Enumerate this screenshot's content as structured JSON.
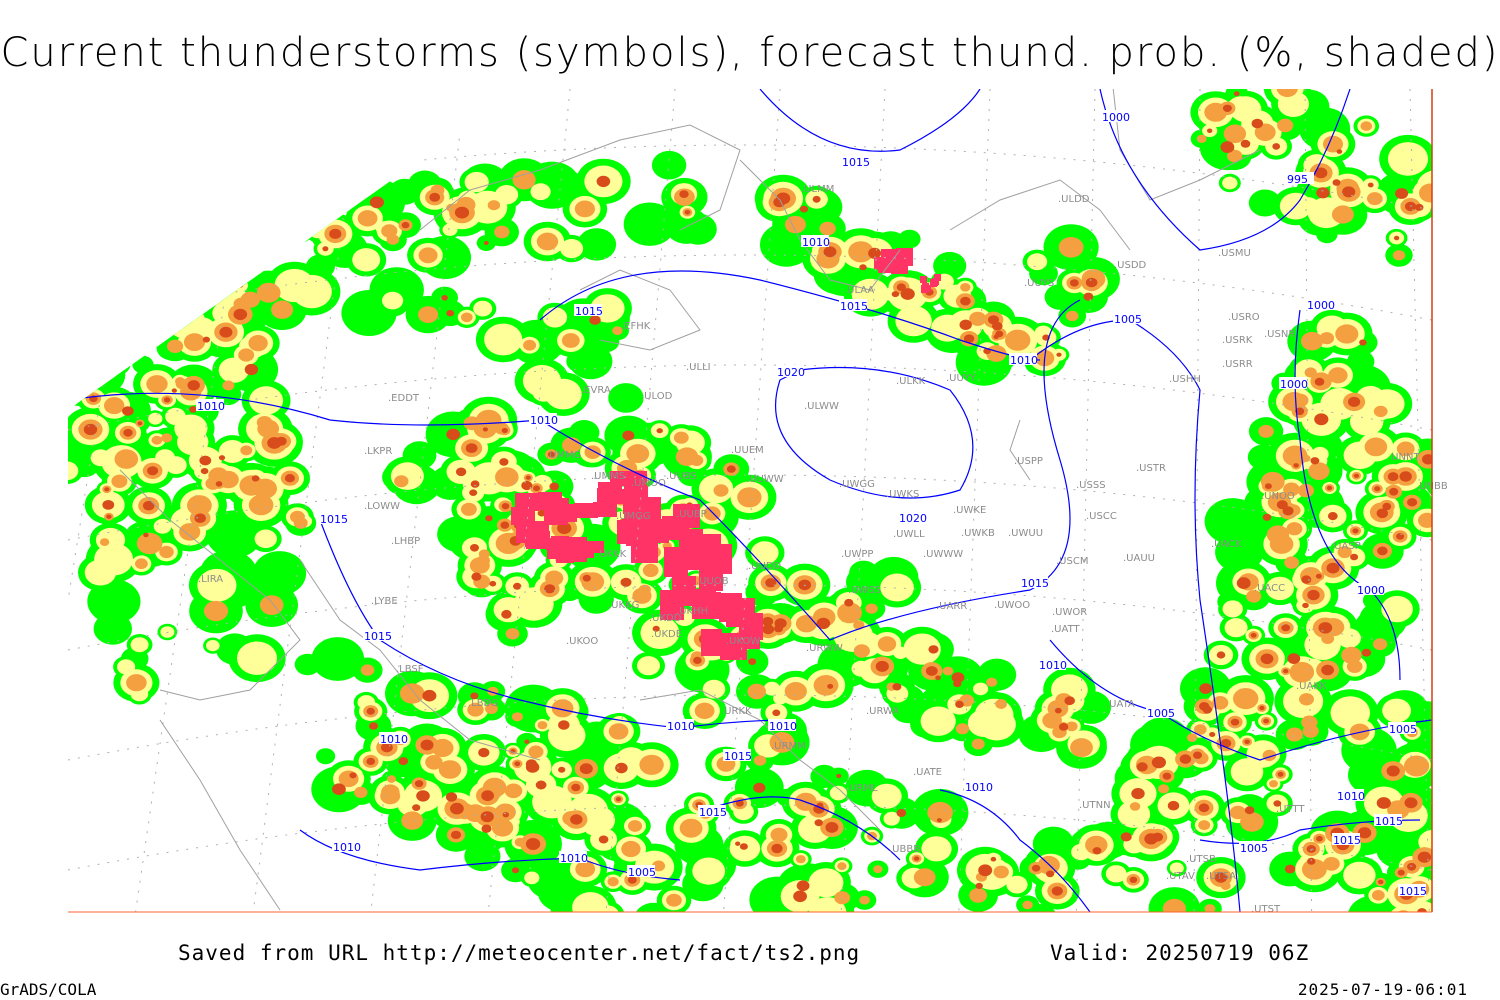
{
  "title": "Current thunderstorms (symbols), forecast thund. prob. (%, shaded)",
  "footer": {
    "saved_from": "Saved from URL http://meteocenter.net/fact/ts2.png",
    "valid": "Valid: 20250719 06Z",
    "software": "GrADS/COLA",
    "generated": "2025-07-19-06:01"
  },
  "colors": {
    "prob_low": "#00ff00",
    "prob_mid": "#ffff99",
    "prob_high": "#f5a040",
    "prob_very_high": "#d84c1c",
    "current_thunderstorms": "#ff3366",
    "isobars": "#0000ff",
    "coastlines": "#a0a0a0",
    "stations": "#8c8c8c"
  },
  "stations": [
    "ULMM",
    "ULDD",
    "USDD",
    "USMU",
    "UUYS",
    "ULAA",
    "EFHK",
    "USRO",
    "USRK",
    "USNR",
    "USRR",
    "ULLI",
    "ULKK",
    "UUYY",
    "USHH",
    "ULWW",
    "EVRA",
    "ULOD",
    "EDDT",
    "UUEM",
    "USPP",
    "USTR",
    "UMMG",
    "LKPR",
    "UUWW",
    "UWGG",
    "UWKS",
    "USSS",
    "UMOO",
    "UMMS",
    "UUBS",
    "UMGG",
    "UUBP",
    "UWKE",
    "USCC",
    "LOWW",
    "UNOO",
    "UNNT",
    "UNBB",
    "LHBP",
    "UWLL",
    "UWKB",
    "UWUU",
    "UACK",
    "UKKK",
    "UWPP",
    "UWWW",
    "UUDD",
    "USCM",
    "UAUU",
    "LIRA",
    "UUOB",
    "UACC",
    "UWSS",
    "UARR",
    "UWOO",
    "UWOR",
    "UKHH",
    "LYBE",
    "UKKG",
    "UKDD",
    "UKOO",
    "UATT",
    "UKDE",
    "UKOW",
    "URWW",
    "LBSF",
    "LBBG",
    "UATA",
    "URWA",
    "URKK",
    "URMM",
    "UATE",
    "URML",
    "UTNN",
    "UBBB",
    "UTTT",
    "UTSB",
    "UTAV",
    "UTSA",
    "UTST",
    "UASP",
    "UAKK"
  ],
  "isobar_labels": [
    "1015",
    "1000",
    "995",
    "1010",
    "1015",
    "1015",
    "1005",
    "1000",
    "1010",
    "1020",
    "1000",
    "1010",
    "1010",
    "1015",
    "1020",
    "1015",
    "1000",
    "1015",
    "1010",
    "1005",
    "1010",
    "1010",
    "1010",
    "1005",
    "1015",
    "1010",
    "1010",
    "1015",
    "1015",
    "1010",
    "1015",
    "1010",
    "1005",
    "1005",
    "1015"
  ]
}
